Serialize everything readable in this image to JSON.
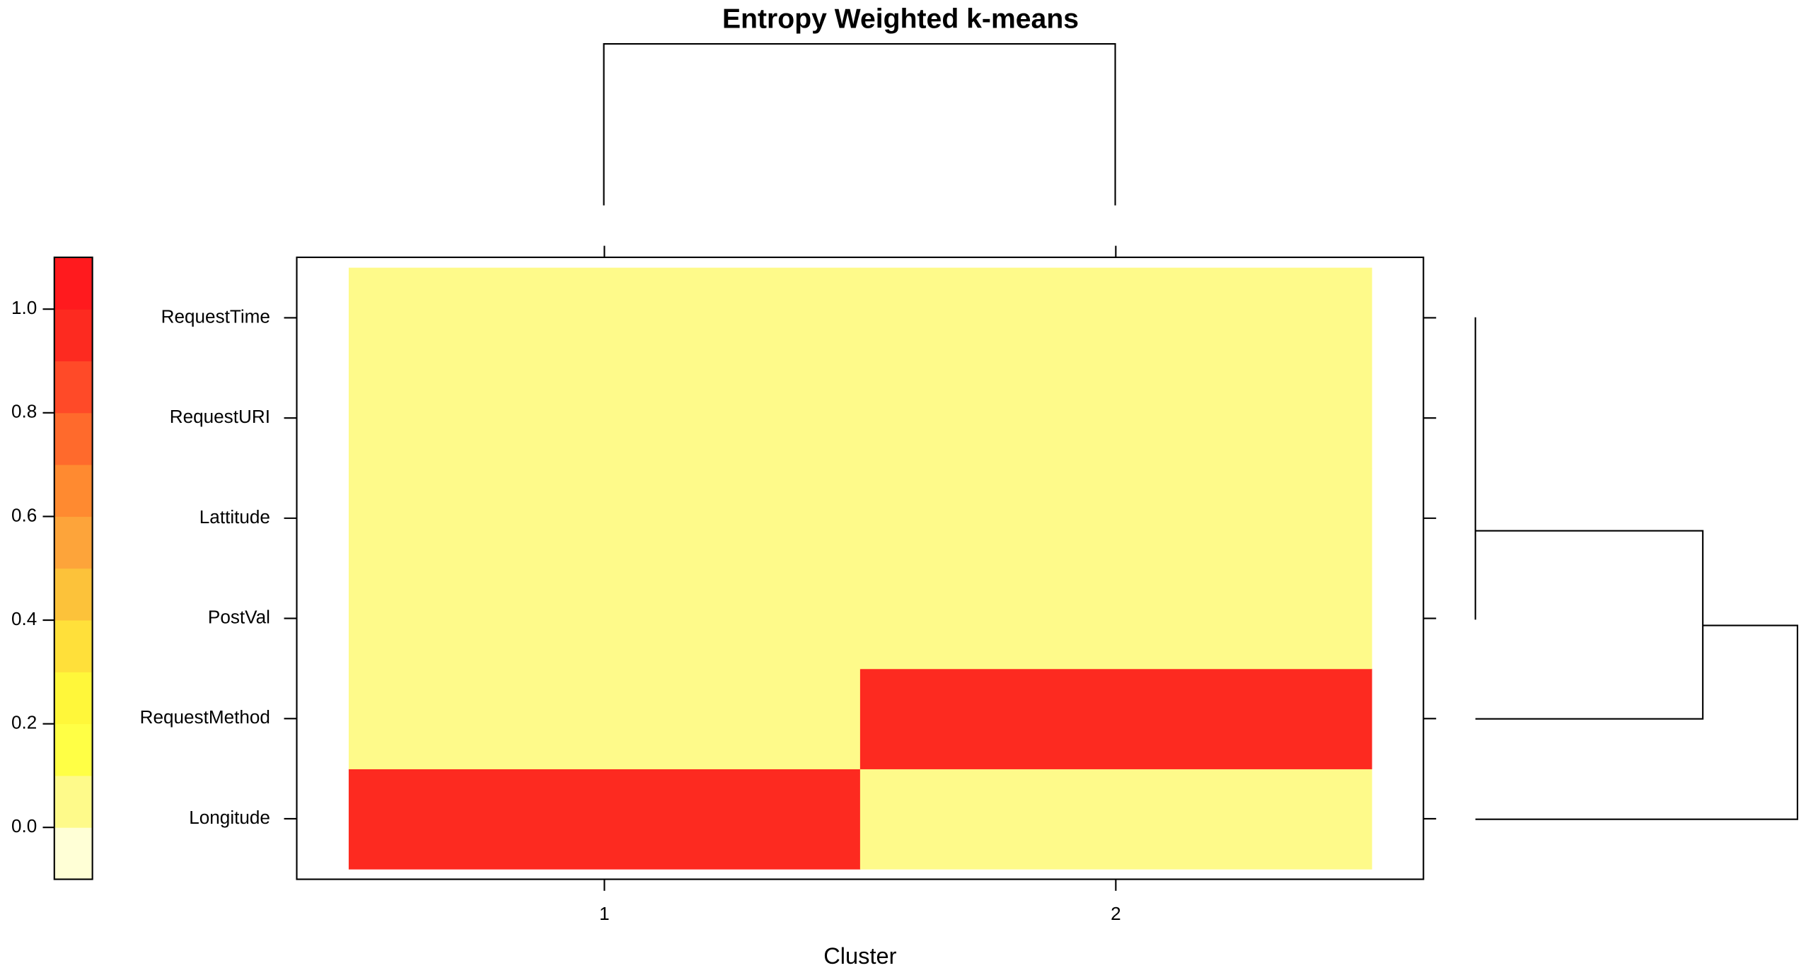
{
  "chart_data": {
    "type": "heatmap",
    "title": "Entropy Weighted k-means",
    "xlabel": "Cluster",
    "categories": [
      "1",
      "2"
    ],
    "y_categories": [
      "Longitude",
      "RequestMethod",
      "PostVal",
      "Lattitude",
      "RequestURI",
      "RequestTime"
    ],
    "values": [
      [
        0.95,
        0.05
      ],
      [
        0.05,
        0.95
      ],
      [
        0.05,
        0.05
      ],
      [
        0.05,
        0.05
      ],
      [
        0.05,
        0.05
      ],
      [
        0.05,
        0.05
      ]
    ],
    "colorbar": {
      "breaks": [
        -0.1,
        0.0,
        0.1,
        0.2,
        0.3,
        0.4,
        0.5,
        0.6,
        0.7,
        0.8,
        0.9,
        1.0,
        1.1
      ],
      "colors": [
        "#ffffd6",
        "#fefa8a",
        "#ffff45",
        "#fff73a",
        "#ffe03a",
        "#fcc23a",
        "#fda43a",
        "#ff8a30",
        "#ff6a2c",
        "#ff4a28",
        "#fd2a20",
        "#ff1a1e"
      ],
      "ticks": [
        {
          "value": 0,
          "label": "0.0"
        },
        0.2,
        0.4,
        0.6,
        0.8,
        {
          "value": 1,
          "label": "1.0"
        }
      ]
    }
  }
}
